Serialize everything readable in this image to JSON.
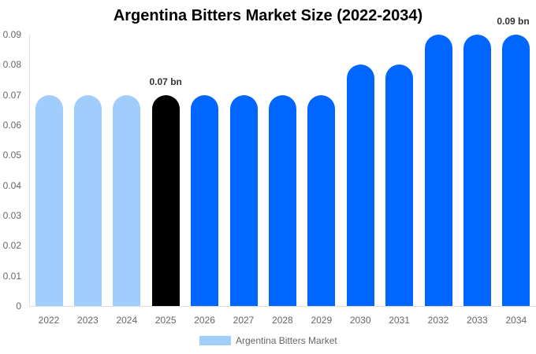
{
  "chart_data": {
    "type": "bar",
    "title": "Argentina Bitters Market Size (2022-2034)",
    "xlabel": "",
    "ylabel": "",
    "ylim": [
      0,
      0.09
    ],
    "yticks": [
      "0",
      "0.01",
      "0.02",
      "0.03",
      "0.04",
      "0.05",
      "0.06",
      "0.07",
      "0.08",
      "0.09"
    ],
    "categories": [
      "2022",
      "2023",
      "2024",
      "2025",
      "2026",
      "2027",
      "2028",
      "2029",
      "2030",
      "2031",
      "2032",
      "2033",
      "2034"
    ],
    "series": [
      {
        "name": "Argentina Bitters Market",
        "values": [
          0.07,
          0.07,
          0.07,
          0.07,
          0.07,
          0.07,
          0.07,
          0.07,
          0.08,
          0.08,
          0.09,
          0.09,
          0.09
        ]
      }
    ],
    "bar_colors": [
      "#a1cdfd",
      "#a1cdfd",
      "#a1cdfd",
      "#000000",
      "#0066ff",
      "#0066ff",
      "#0066ff",
      "#0066ff",
      "#0066ff",
      "#0066ff",
      "#0066ff",
      "#0066ff",
      "#0066ff"
    ],
    "annotations": [
      {
        "category": "2025",
        "text": "0.07 bn"
      },
      {
        "category": "2034",
        "text": "0.09 bn"
      }
    ],
    "legend": {
      "position": "bottom",
      "label": "Argentina Bitters Market",
      "color": "#a1cdfd"
    },
    "grid": false
  }
}
